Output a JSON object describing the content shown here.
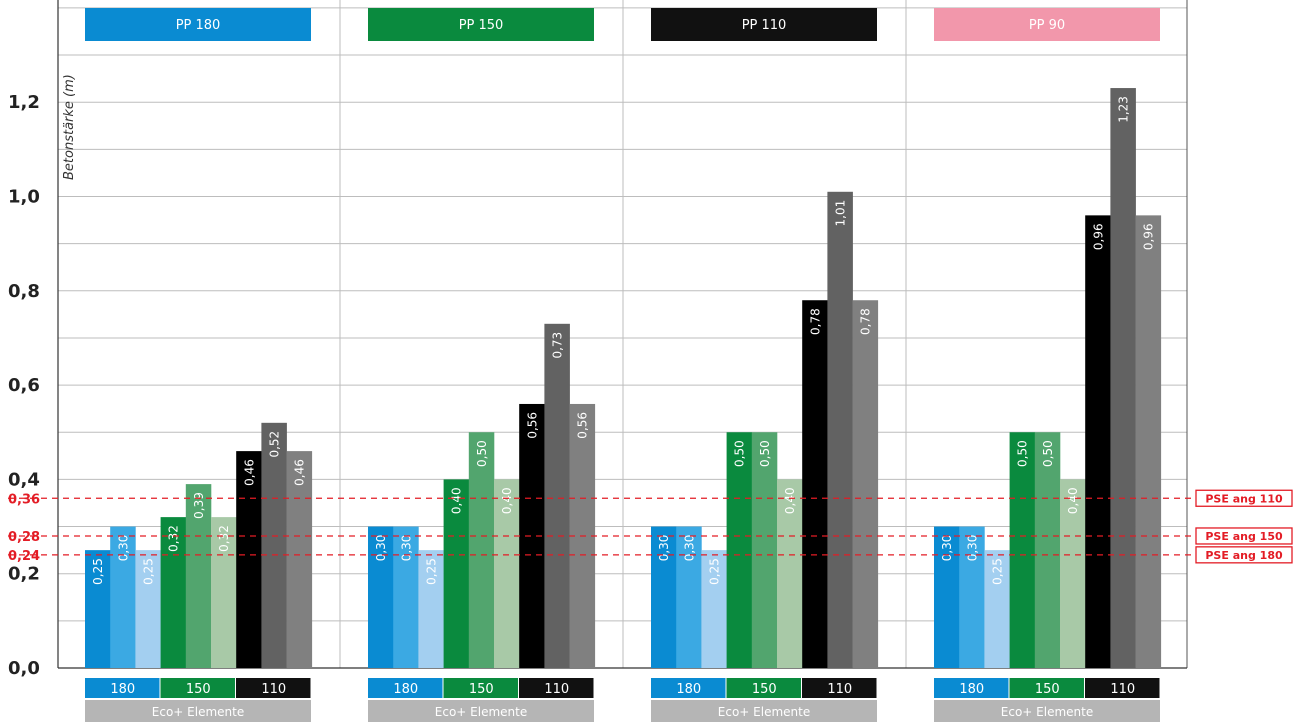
{
  "chart_data": {
    "type": "bar",
    "ylabel": "Betonstärke (m)",
    "ylim": [
      0,
      1.4
    ],
    "y_ticks": [
      "0,0",
      "0,2",
      "0,4",
      "0,6",
      "0,8",
      "1,0",
      "1,2"
    ],
    "grid": true,
    "groups": [
      {
        "name": "PP 180",
        "color": "#0a8bd2",
        "text_color": "#ffffff",
        "values": [
          0.25,
          0.3,
          0.25,
          0.32,
          0.39,
          0.32,
          0.46,
          0.52,
          0.46
        ],
        "labels": [
          "0,25",
          "0,30",
          "0,25",
          "0,32",
          "0,39",
          "0,32",
          "0,46",
          "0,52",
          "0,46"
        ]
      },
      {
        "name": "PP 150",
        "color": "#0a8a3e",
        "text_color": "#ffffff",
        "values": [
          0.3,
          0.3,
          0.25,
          0.4,
          0.5,
          0.4,
          0.56,
          0.73,
          0.56
        ],
        "labels": [
          "0,30",
          "0,30",
          "0,25",
          "0,40",
          "0,50",
          "0,40",
          "0,56",
          "0,73",
          "0,56"
        ]
      },
      {
        "name": "PP 110",
        "color": "#111111",
        "text_color": "#ffffff",
        "values": [
          0.3,
          0.3,
          0.25,
          0.5,
          0.5,
          0.4,
          0.78,
          1.01,
          0.78
        ],
        "labels": [
          "0,30",
          "0,30",
          "0,25",
          "0,50",
          "0,50",
          "0,40",
          "0,78",
          "1,01",
          "0,78"
        ]
      },
      {
        "name": "PP 90",
        "color": "#f297ab",
        "text_color": "#ffffff",
        "values": [
          0.3,
          0.3,
          0.25,
          0.5,
          0.5,
          0.4,
          0.96,
          1.23,
          0.96
        ],
        "labels": [
          "0,30",
          "0,30",
          "0,25",
          "0,50",
          "0,50",
          "0,40",
          "0,96",
          "1,23",
          "0,96"
        ]
      }
    ],
    "bar_colors": [
      "#0a8bd2",
      "#3ba9e3",
      "#a3cff0",
      "#0a8a3e",
      "#52a56e",
      "#a8c9a7",
      "#000000",
      "#626262",
      "#808080"
    ],
    "subcategories": [
      {
        "label": "180",
        "color": "#0a8bd2",
        "text_color": "#ffffff"
      },
      {
        "label": "150",
        "color": "#0a8a3e",
        "text_color": "#ffffff"
      },
      {
        "label": "110",
        "color": "#111111",
        "text_color": "#ffffff"
      }
    ],
    "category_label": "Eco+ Elemente",
    "reference_lines": [
      {
        "value": 0.36,
        "tick": "0,36",
        "label": "PSE ang 110"
      },
      {
        "value": 0.28,
        "tick": "0,28",
        "label": "PSE ang 150"
      },
      {
        "value": 0.24,
        "tick": "0,24",
        "label": "PSE ang 180"
      }
    ],
    "reference_color": "#e31c25"
  }
}
